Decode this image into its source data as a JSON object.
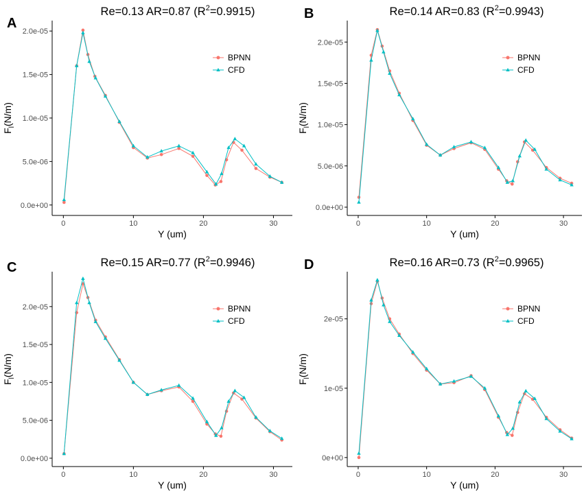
{
  "colors": {
    "bpnn": "#F8766D",
    "cfd": "#00BFC4",
    "axis": "#000000",
    "tick_text": "#4d4d4d"
  },
  "chart_data": [
    {
      "type": "line",
      "panel": "A",
      "title": "Re=0.13 AR=0.87 (R",
      "title_sup": "2",
      "title_tail": "=0.9915)",
      "xlabel": "Y (um)",
      "ylabel": "F",
      "ylabel_sub": "l",
      "ylabel_tail": "(N/m)",
      "xlim": [
        -1.6,
        32.7
      ],
      "ylim": [
        -1.2e-06,
        2.12e-05
      ],
      "xticks": [
        0,
        10,
        20,
        30
      ],
      "xtick_labels": [
        "0",
        "10",
        "20",
        "30"
      ],
      "yticks": [
        0,
        5e-06,
        1e-05,
        1.5e-05,
        2e-05
      ],
      "ytick_labels": [
        "0.0e+00",
        "5.0e-06",
        "1.0e-05",
        "1.5e-05",
        "2.0e-05"
      ],
      "legend": [
        "BPNN",
        "CFD"
      ],
      "series": [
        {
          "name": "BPNN",
          "points": [
            [
              0.1,
              3e-07
            ],
            [
              1.9,
              1.6e-05
            ],
            [
              2.8,
              2.01e-05
            ],
            [
              3.5,
              1.73e-05
            ],
            [
              4.5,
              1.48e-05
            ],
            [
              6,
              1.26e-05
            ],
            [
              8,
              9.5e-06
            ],
            [
              10,
              6.6e-06
            ],
            [
              12,
              5.4e-06
            ],
            [
              14,
              5.8e-06
            ],
            [
              16.5,
              6.5e-06
            ],
            [
              18.5,
              5.6e-06
            ],
            [
              20.5,
              3.4e-06
            ],
            [
              21.7,
              2.3e-06
            ],
            [
              22.5,
              2.7e-06
            ],
            [
              23.3,
              5.2e-06
            ],
            [
              24.3,
              7.2e-06
            ],
            [
              25.5,
              6.3e-06
            ],
            [
              27.5,
              4.2e-06
            ],
            [
              29.5,
              3.2e-06
            ],
            [
              31.2,
              2.6e-06
            ]
          ]
        },
        {
          "name": "CFD",
          "points": [
            [
              0.1,
              6e-07
            ],
            [
              1.9,
              1.6e-05
            ],
            [
              2.8,
              1.98e-05
            ],
            [
              3.7,
              1.65e-05
            ],
            [
              4.6,
              1.46e-05
            ],
            [
              6,
              1.25e-05
            ],
            [
              8,
              9.6e-06
            ],
            [
              10,
              6.8e-06
            ],
            [
              12,
              5.5e-06
            ],
            [
              14,
              6.2e-06
            ],
            [
              16.5,
              6.8e-06
            ],
            [
              18.5,
              6e-06
            ],
            [
              20.5,
              3.8e-06
            ],
            [
              21.8,
              2.4e-06
            ],
            [
              22.6,
              3.6e-06
            ],
            [
              23.6,
              6.6e-06
            ],
            [
              24.5,
              7.6e-06
            ],
            [
              25.8,
              6.8e-06
            ],
            [
              27.5,
              4.7e-06
            ],
            [
              29.5,
              3.3e-06
            ],
            [
              31.2,
              2.6e-06
            ]
          ]
        }
      ]
    },
    {
      "type": "line",
      "panel": "B",
      "title": "Re=0.14 AR=0.83 (R",
      "title_sup": "2",
      "title_tail": "=0.9943)",
      "xlabel": "Y (um)",
      "ylabel": "F",
      "ylabel_sub": "l",
      "ylabel_tail": "(N/m)",
      "xlim": [
        -1.6,
        32.7
      ],
      "ylim": [
        -1e-06,
        2.26e-05
      ],
      "xticks": [
        0,
        10,
        20,
        30
      ],
      "xtick_labels": [
        "0",
        "10",
        "20",
        "30"
      ],
      "yticks": [
        0,
        5e-06,
        1e-05,
        1.5e-05,
        2e-05
      ],
      "ytick_labels": [
        "0.0e+00",
        "5.0e-06",
        "1.0e-05",
        "1.5e-05",
        "2.0e-05"
      ],
      "legend": [
        "BPNN",
        "CFD"
      ],
      "series": [
        {
          "name": "BPNN",
          "points": [
            [
              0.1,
              1.2e-06
            ],
            [
              1.9,
              1.84e-05
            ],
            [
              2.8,
              2.15e-05
            ],
            [
              3.5,
              1.95e-05
            ],
            [
              4.6,
              1.65e-05
            ],
            [
              6,
              1.38e-05
            ],
            [
              8,
              1.05e-05
            ],
            [
              10,
              7.5e-06
            ],
            [
              12,
              6.3e-06
            ],
            [
              14,
              7.1e-06
            ],
            [
              16.5,
              7.8e-06
            ],
            [
              18.5,
              7e-06
            ],
            [
              20.5,
              4.6e-06
            ],
            [
              21.7,
              3.2e-06
            ],
            [
              22.5,
              2.8e-06
            ],
            [
              23.3,
              5.5e-06
            ],
            [
              24.3,
              7.9e-06
            ],
            [
              25.5,
              6.9e-06
            ],
            [
              27.5,
              4.8e-06
            ],
            [
              29.5,
              3.5e-06
            ],
            [
              31.2,
              2.9e-06
            ]
          ]
        },
        {
          "name": "CFD",
          "points": [
            [
              0.1,
              6e-07
            ],
            [
              1.9,
              1.78e-05
            ],
            [
              2.8,
              2.14e-05
            ],
            [
              3.7,
              1.88e-05
            ],
            [
              4.6,
              1.62e-05
            ],
            [
              6,
              1.36e-05
            ],
            [
              8,
              1.07e-05
            ],
            [
              10,
              7.6e-06
            ],
            [
              12,
              6.3e-06
            ],
            [
              14,
              7.3e-06
            ],
            [
              16.5,
              7.9e-06
            ],
            [
              18.5,
              7.2e-06
            ],
            [
              20.5,
              4.8e-06
            ],
            [
              21.8,
              3e-06
            ],
            [
              22.6,
              3.2e-06
            ],
            [
              23.6,
              6.2e-06
            ],
            [
              24.5,
              8.1e-06
            ],
            [
              25.8,
              7e-06
            ],
            [
              27.5,
              4.6e-06
            ],
            [
              29.5,
              3.3e-06
            ],
            [
              31.2,
              2.7e-06
            ]
          ]
        }
      ]
    },
    {
      "type": "line",
      "panel": "C",
      "title": "Re=0.15 AR=0.77 (R",
      "title_sup": "2",
      "title_tail": "=0.9946)",
      "xlabel": "Y (um)",
      "ylabel": "F",
      "ylabel_sub": "l",
      "ylabel_tail": "(N/m)",
      "xlim": [
        -1.6,
        32.7
      ],
      "ylim": [
        -1.1e-06,
        2.46e-05
      ],
      "xticks": [
        0,
        10,
        20,
        30
      ],
      "xtick_labels": [
        "0",
        "10",
        "20",
        "30"
      ],
      "yticks": [
        0,
        5e-06,
        1e-05,
        1.5e-05,
        2e-05
      ],
      "ytick_labels": [
        "0.0e+00",
        "5.0e-06",
        "1.0e-05",
        "1.5e-05",
        "2.0e-05"
      ],
      "legend": [
        "BPNN",
        "CFD"
      ],
      "series": [
        {
          "name": "BPNN",
          "points": [
            [
              0.1,
              6e-07
            ],
            [
              1.9,
              1.92e-05
            ],
            [
              2.8,
              2.3e-05
            ],
            [
              3.5,
              2.12e-05
            ],
            [
              4.6,
              1.82e-05
            ],
            [
              6,
              1.6e-05
            ],
            [
              8,
              1.3e-05
            ],
            [
              10,
              1e-05
            ],
            [
              12,
              8.4e-06
            ],
            [
              14,
              8.9e-06
            ],
            [
              16.5,
              9.4e-06
            ],
            [
              18.5,
              7.5e-06
            ],
            [
              20.5,
              4.5e-06
            ],
            [
              21.7,
              3.2e-06
            ],
            [
              22.5,
              2.9e-06
            ],
            [
              23.3,
              6.2e-06
            ],
            [
              24.3,
              8.6e-06
            ],
            [
              25.5,
              7.8e-06
            ],
            [
              27.5,
              5.3e-06
            ],
            [
              29.5,
              3.5e-06
            ],
            [
              31.2,
              2.4e-06
            ]
          ]
        },
        {
          "name": "CFD",
          "points": [
            [
              0.1,
              6e-07
            ],
            [
              1.9,
              2.05e-05
            ],
            [
              2.8,
              2.37e-05
            ],
            [
              3.7,
              2.05e-05
            ],
            [
              4.6,
              1.8e-05
            ],
            [
              6,
              1.58e-05
            ],
            [
              8,
              1.29e-05
            ],
            [
              10,
              1e-05
            ],
            [
              12,
              8.4e-06
            ],
            [
              14,
              9e-06
            ],
            [
              16.5,
              9.6e-06
            ],
            [
              18.5,
              7.9e-06
            ],
            [
              20.5,
              4.8e-06
            ],
            [
              21.8,
              3e-06
            ],
            [
              22.6,
              4e-06
            ],
            [
              23.6,
              7.5e-06
            ],
            [
              24.5,
              8.9e-06
            ],
            [
              25.8,
              8e-06
            ],
            [
              27.5,
              5.4e-06
            ],
            [
              29.5,
              3.6e-06
            ],
            [
              31.2,
              2.6e-06
            ]
          ]
        }
      ]
    },
    {
      "type": "line",
      "panel": "D",
      "title": "Re=0.16 AR=0.73 (R",
      "title_sup": "2",
      "title_tail": "=0.9965)",
      "xlabel": "Y (um)",
      "ylabel": "F",
      "ylabel_sub": "l",
      "ylabel_tail": "(N/m)",
      "xlim": [
        -1.6,
        32.7
      ],
      "ylim": [
        -1.3e-06,
        2.68e-05
      ],
      "xticks": [
        0,
        10,
        20,
        30
      ],
      "xtick_labels": [
        "0",
        "10",
        "20",
        "30"
      ],
      "yticks": [
        0,
        1e-05,
        2e-05
      ],
      "ytick_labels": [
        "0e+00",
        "1e-05",
        "2e-05"
      ],
      "legend": [
        "BPNN",
        "CFD"
      ],
      "series": [
        {
          "name": "BPNN",
          "points": [
            [
              0.1,
              0
            ],
            [
              1.9,
              2.22e-05
            ],
            [
              2.8,
              2.54e-05
            ],
            [
              3.5,
              2.3e-05
            ],
            [
              4.6,
              2e-05
            ],
            [
              6,
              1.78e-05
            ],
            [
              8,
              1.5e-05
            ],
            [
              10,
              1.26e-05
            ],
            [
              12,
              1.06e-05
            ],
            [
              14,
              1.08e-05
            ],
            [
              16.5,
              1.18e-05
            ],
            [
              18.5,
              9.8e-06
            ],
            [
              20.5,
              5.8e-06
            ],
            [
              21.7,
              3.6e-06
            ],
            [
              22.5,
              3.2e-06
            ],
            [
              23.3,
              6.5e-06
            ],
            [
              24.3,
              9.2e-06
            ],
            [
              25.5,
              8.4e-06
            ],
            [
              27.5,
              5.8e-06
            ],
            [
              29.5,
              4e-06
            ],
            [
              31.2,
              2.8e-06
            ]
          ]
        },
        {
          "name": "CFD",
          "points": [
            [
              0.1,
              6e-07
            ],
            [
              1.9,
              2.27e-05
            ],
            [
              2.8,
              2.56e-05
            ],
            [
              3.7,
              2.2e-05
            ],
            [
              4.6,
              1.96e-05
            ],
            [
              6,
              1.76e-05
            ],
            [
              8,
              1.52e-05
            ],
            [
              10,
              1.28e-05
            ],
            [
              12,
              1.06e-05
            ],
            [
              14,
              1.1e-05
            ],
            [
              16.5,
              1.17e-05
            ],
            [
              18.5,
              1e-05
            ],
            [
              20.5,
              6e-06
            ],
            [
              21.8,
              3.3e-06
            ],
            [
              22.6,
              4.2e-06
            ],
            [
              23.6,
              8e-06
            ],
            [
              24.5,
              9.6e-06
            ],
            [
              25.8,
              8.5e-06
            ],
            [
              27.5,
              5.6e-06
            ],
            [
              29.5,
              3.8e-06
            ],
            [
              31.2,
              2.7e-06
            ]
          ]
        }
      ]
    }
  ]
}
